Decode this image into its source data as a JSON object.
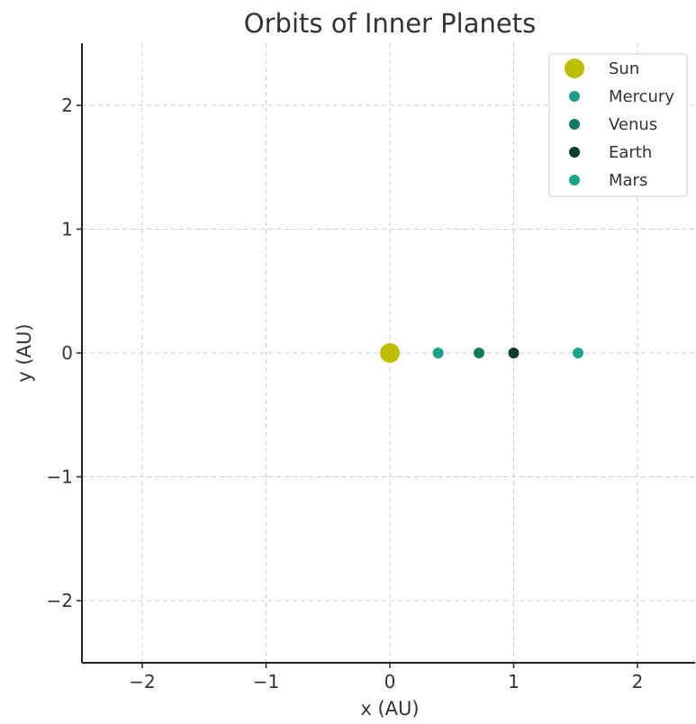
{
  "chart_data": {
    "type": "scatter",
    "title": "Orbits of Inner Planets",
    "xlabel": "x (AU)",
    "ylabel": "y (AU)",
    "xlim": [
      -2.5,
      2.5
    ],
    "ylim": [
      -2.5,
      2.5
    ],
    "xticks": [
      -2,
      -1,
      0,
      1,
      2
    ],
    "yticks": [
      -2,
      -1,
      0,
      1,
      2
    ],
    "xtick_labels": [
      "−2",
      "−1",
      "0",
      "1",
      "2"
    ],
    "ytick_labels": [
      "−2",
      "−1",
      "0",
      "1",
      "2"
    ],
    "grid": true,
    "legend_position": "top-right",
    "series": [
      {
        "name": "Sun",
        "x": [
          0.0
        ],
        "y": [
          0.0
        ],
        "color": "#bfbf00",
        "marker_size": "large"
      },
      {
        "name": "Mercury",
        "x": [
          0.39
        ],
        "y": [
          0.0
        ],
        "color": "#1b9e87",
        "marker_size": "small"
      },
      {
        "name": "Venus",
        "x": [
          0.72
        ],
        "y": [
          0.0
        ],
        "color": "#137a62",
        "marker_size": "small"
      },
      {
        "name": "Earth",
        "x": [
          1.0
        ],
        "y": [
          0.0
        ],
        "color": "#043f2d",
        "marker_size": "small"
      },
      {
        "name": "Mars",
        "x": [
          1.52
        ],
        "y": [
          0.0
        ],
        "color": "#18a589",
        "marker_size": "small"
      }
    ]
  }
}
